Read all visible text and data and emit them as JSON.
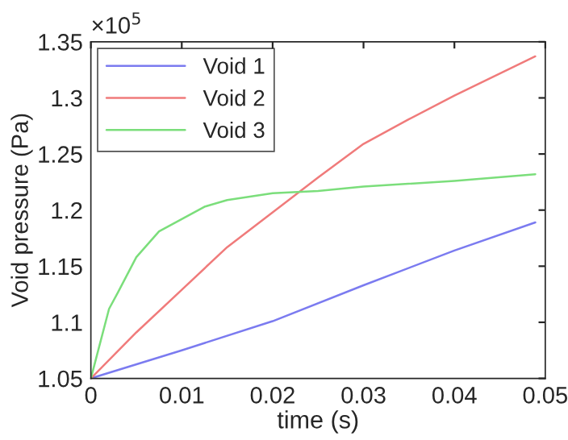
{
  "chart_data": {
    "type": "line",
    "xlabel": "time (s)",
    "ylabel": "Void pressure (Pa)",
    "annotations": [
      "×10$^{5}$"
    ],
    "xlim": [
      0,
      0.05
    ],
    "ylim": [
      1.05,
      1.35
    ],
    "xticks": [
      0,
      0.01,
      0.02,
      0.03,
      0.04,
      0.05
    ],
    "yticks": [
      1.05,
      1.1,
      1.15,
      1.2,
      1.25,
      1.3,
      1.35
    ],
    "legend": "top left",
    "grid": false,
    "marker": "none",
    "line_style": "solid",
    "series": [
      {
        "name": "Void 1",
        "color": "#7b7bf0",
        "x": [
          0,
          0.01,
          0.02,
          0.03,
          0.04,
          0.0489
        ],
        "values": [
          1.05,
          1.075,
          1.101,
          1.133,
          1.164,
          1.189
        ]
      },
      {
        "name": "Void 2",
        "color": "#f07b7b",
        "x": [
          0,
          0.005,
          0.01,
          0.015,
          0.02,
          0.025,
          0.03,
          0.035,
          0.04,
          0.0489
        ],
        "values": [
          1.05,
          1.091,
          1.129,
          1.167,
          1.198,
          1.229,
          1.259,
          1.281,
          1.302,
          1.337
        ]
      },
      {
        "name": "Void 3",
        "color": "#7bde7b",
        "x": [
          0,
          0.001,
          0.002,
          0.003,
          0.005,
          0.0075,
          0.01,
          0.0125,
          0.015,
          0.02,
          0.025,
          0.03,
          0.04,
          0.0489
        ],
        "values": [
          1.05,
          1.081,
          1.112,
          1.127,
          1.158,
          1.181,
          1.192,
          1.203,
          1.209,
          1.215,
          1.217,
          1.221,
          1.226,
          1.232
        ]
      }
    ]
  }
}
